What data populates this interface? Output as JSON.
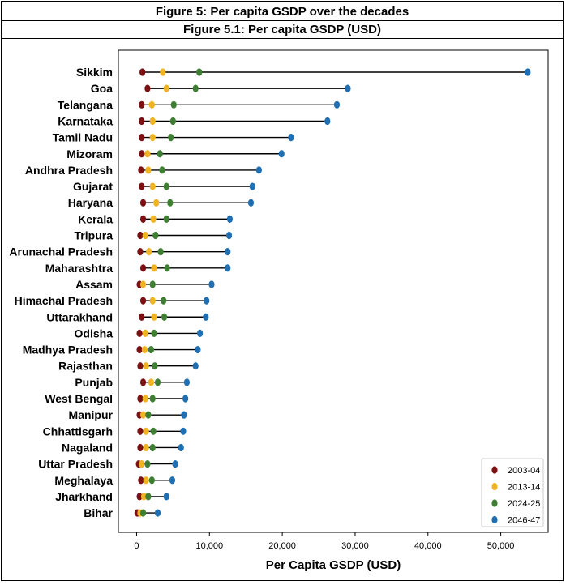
{
  "header": {
    "title": "Figure 5: Per capita GSDP over the decades",
    "subtitle": "Figure 5.1: Per capita GSDP (USD)"
  },
  "chart_data": {
    "type": "dumbbell",
    "xlabel": "Per Capita GSDP (USD)",
    "xlim": [
      -2500,
      56500
    ],
    "xticks": [
      0,
      10000,
      20000,
      30000,
      40000,
      50000
    ],
    "xtick_labels": [
      "0",
      "10,000",
      "20,000",
      "30,000",
      "40,000",
      "50,000"
    ],
    "legend_position": "bottom-right",
    "series": [
      {
        "name": "2003-04",
        "color": "#7b1113"
      },
      {
        "name": "2013-14",
        "color": "#f0b323"
      },
      {
        "name": "2024-25",
        "color": "#3f7f33"
      },
      {
        "name": "2046-47",
        "color": "#1f6fb2"
      }
    ],
    "categories": [
      {
        "name": "Sikkim",
        "values": [
          800,
          3600,
          8600,
          53700
        ]
      },
      {
        "name": "Goa",
        "values": [
          1500,
          4100,
          8100,
          29000
        ]
      },
      {
        "name": "Telangana",
        "values": [
          700,
          2100,
          5100,
          27500
        ]
      },
      {
        "name": "Karnataka",
        "values": [
          700,
          2200,
          5000,
          26200
        ]
      },
      {
        "name": "Tamil Nadu",
        "values": [
          700,
          2200,
          4700,
          21200
        ]
      },
      {
        "name": "Mizoram",
        "values": [
          700,
          1500,
          3200,
          19900
        ]
      },
      {
        "name": "Andhra Pradesh",
        "values": [
          600,
          1600,
          3500,
          16800
        ]
      },
      {
        "name": "Gujarat",
        "values": [
          700,
          2200,
          4100,
          15900
        ]
      },
      {
        "name": "Haryana",
        "values": [
          900,
          2700,
          4600,
          15700
        ]
      },
      {
        "name": "Kerala",
        "values": [
          900,
          2300,
          4100,
          12800
        ]
      },
      {
        "name": "Tripura",
        "values": [
          500,
          1200,
          2600,
          12700
        ]
      },
      {
        "name": "Arunachal Pradesh",
        "values": [
          500,
          1700,
          3300,
          12500
        ]
      },
      {
        "name": "Maharashtra",
        "values": [
          900,
          2400,
          4200,
          12500
        ]
      },
      {
        "name": "Assam",
        "values": [
          400,
          900,
          2200,
          10300
        ]
      },
      {
        "name": "Himachal Pradesh",
        "values": [
          900,
          2200,
          3700,
          9600
        ]
      },
      {
        "name": "Uttarakhand",
        "values": [
          700,
          2400,
          3800,
          9500
        ]
      },
      {
        "name": "Odisha",
        "values": [
          400,
          1200,
          2400,
          8700
        ]
      },
      {
        "name": "Madhya Pradesh",
        "values": [
          400,
          1100,
          2000,
          8400
        ]
      },
      {
        "name": "Rajasthan",
        "values": [
          500,
          1300,
          2500,
          8100
        ]
      },
      {
        "name": "Punjab",
        "values": [
          900,
          2000,
          2900,
          6900
        ]
      },
      {
        "name": "West Bengal",
        "values": [
          500,
          1200,
          2200,
          6700
        ]
      },
      {
        "name": "Manipur",
        "values": [
          400,
          900,
          1600,
          6500
        ]
      },
      {
        "name": "Chhattisgarh",
        "values": [
          500,
          1300,
          2300,
          6400
        ]
      },
      {
        "name": "Nagaland",
        "values": [
          500,
          1300,
          2200,
          6100
        ]
      },
      {
        "name": "Uttar Pradesh",
        "values": [
          300,
          700,
          1500,
          5300
        ]
      },
      {
        "name": "Meghalaya",
        "values": [
          600,
          1300,
          2100,
          4900
        ]
      },
      {
        "name": "Jharkhand",
        "values": [
          400,
          1000,
          1600,
          4100
        ]
      },
      {
        "name": "Bihar",
        "values": [
          100,
          500,
          900,
          2900
        ]
      }
    ]
  }
}
